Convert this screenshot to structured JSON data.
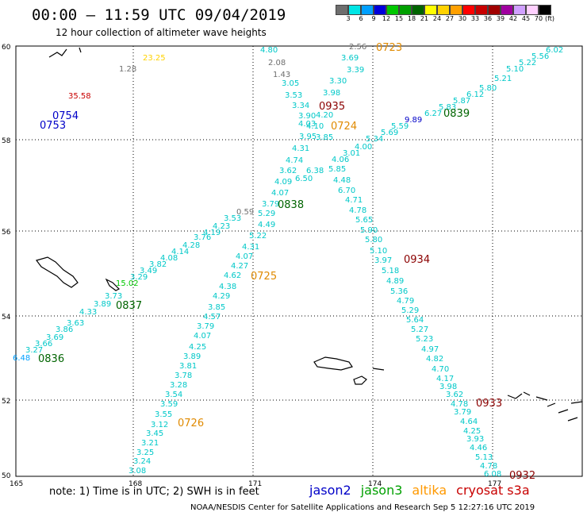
{
  "header": {
    "title": "00:00 – 11:59 UTC 09/04/2019",
    "subtitle": "12 hour collection of altimeter wave heights"
  },
  "legend": {
    "unit": "(ft)",
    "colors": [
      "#6e6e6e",
      "#00e5e5",
      "#00a0ff",
      "#0000dc",
      "#00c800",
      "#00a000",
      "#006400",
      "#ffff00",
      "#ffd200",
      "#ffa000",
      "#ff0000",
      "#c80000",
      "#a00000",
      "#a000a0",
      "#d0a0ff",
      "#ffd0ff",
      "#000000"
    ],
    "ticks": [
      "3",
      "6",
      "9",
      "12",
      "15",
      "18",
      "21",
      "24",
      "27",
      "30",
      "33",
      "36",
      "39",
      "42",
      "45",
      "70"
    ]
  },
  "map": {
    "x_ticks": [
      "165",
      "168",
      "171",
      "174",
      "177"
    ],
    "y_ticks": [
      "60",
      "58",
      "56",
      "54",
      "52",
      "50"
    ]
  },
  "time_labels": [
    {
      "text": "0723",
      "color": "#e08a00"
    },
    {
      "text": "0935",
      "color": "#8b0000"
    },
    {
      "text": "0724",
      "color": "#e08a00"
    },
    {
      "text": "0839",
      "color": "#006400"
    },
    {
      "text": "0754",
      "color": "#0000c8"
    },
    {
      "text": "0753",
      "color": "#0000c8"
    },
    {
      "text": "0838",
      "color": "#006400"
    },
    {
      "text": "0725",
      "color": "#e08a00"
    },
    {
      "text": "0934",
      "color": "#8b0000"
    },
    {
      "text": "0837",
      "color": "#006400"
    },
    {
      "text": "0836",
      "color": "#006400"
    },
    {
      "text": "0726",
      "color": "#e08a00"
    },
    {
      "text": "0933",
      "color": "#8b0000"
    },
    {
      "text": "0932",
      "color": "#8b0000"
    }
  ],
  "obs": [
    {
      "v": "2.56",
      "c": "#6e6e6e"
    },
    {
      "v": "4.80",
      "c": "#00c8c8"
    },
    {
      "v": "2.08",
      "c": "#6e6e6e"
    },
    {
      "v": "1.43",
      "c": "#6e6e6e"
    },
    {
      "v": "3.69",
      "c": "#00c8c8"
    },
    {
      "v": "3.39",
      "c": "#00c8c8"
    },
    {
      "v": "3.30",
      "c": "#00c8c8"
    },
    {
      "v": "3.05",
      "c": "#00c8c8"
    },
    {
      "v": "3.53",
      "c": "#00c8c8"
    },
    {
      "v": "3.98",
      "c": "#00c8c8"
    },
    {
      "v": "3.34",
      "c": "#00c8c8"
    },
    {
      "v": "3.90",
      "c": "#00c8c8"
    },
    {
      "v": "4.20",
      "c": "#00c8c8"
    },
    {
      "v": "4.10",
      "c": "#00c8c8"
    },
    {
      "v": "3.95",
      "c": "#00c8c8"
    },
    {
      "v": "4.03",
      "c": "#00c8c8"
    },
    {
      "v": "3.85",
      "c": "#00c8c8"
    },
    {
      "v": "4.31",
      "c": "#00c8c8"
    },
    {
      "v": "4.74",
      "c": "#00c8c8"
    },
    {
      "v": "3.62",
      "c": "#00c8c8"
    },
    {
      "v": "4.09",
      "c": "#00c8c8"
    },
    {
      "v": "4.07",
      "c": "#00c8c8"
    },
    {
      "v": "3.79",
      "c": "#00c8c8"
    },
    {
      "v": "5.29",
      "c": "#00c8c8"
    },
    {
      "v": "4.49",
      "c": "#00c8c8"
    },
    {
      "v": "5.22",
      "c": "#00c8c8"
    },
    {
      "v": "4.31",
      "c": "#00c8c8"
    },
    {
      "v": "4.07",
      "c": "#00c8c8"
    },
    {
      "v": "4.27",
      "c": "#00c8c8"
    },
    {
      "v": "4.62",
      "c": "#00c8c8"
    },
    {
      "v": "4.38",
      "c": "#00c8c8"
    },
    {
      "v": "4.29",
      "c": "#00c8c8"
    },
    {
      "v": "3.85",
      "c": "#00c8c8"
    },
    {
      "v": "4.57",
      "c": "#00c8c8"
    },
    {
      "v": "3.79",
      "c": "#00c8c8"
    },
    {
      "v": "4.07",
      "c": "#00c8c8"
    },
    {
      "v": "4.25",
      "c": "#00c8c8"
    },
    {
      "v": "3.89",
      "c": "#00c8c8"
    },
    {
      "v": "3.81",
      "c": "#00c8c8"
    },
    {
      "v": "3.78",
      "c": "#00c8c8"
    },
    {
      "v": "3.28",
      "c": "#00c8c8"
    },
    {
      "v": "3.54",
      "c": "#00c8c8"
    },
    {
      "v": "3.59",
      "c": "#00c8c8"
    },
    {
      "v": "3.55",
      "c": "#00c8c8"
    },
    {
      "v": "3.12",
      "c": "#00c8c8"
    },
    {
      "v": "3.45",
      "c": "#00c8c8"
    },
    {
      "v": "3.21",
      "c": "#00c8c8"
    },
    {
      "v": "3.25",
      "c": "#00c8c8"
    },
    {
      "v": "3.24",
      "c": "#00c8c8"
    },
    {
      "v": "3.08",
      "c": "#00c8c8"
    },
    {
      "v": "6.02",
      "c": "#00c8c8"
    },
    {
      "v": "5.56",
      "c": "#00c8c8"
    },
    {
      "v": "5.22",
      "c": "#00c8c8"
    },
    {
      "v": "5.10",
      "c": "#00c8c8"
    },
    {
      "v": "5.21",
      "c": "#00c8c8"
    },
    {
      "v": "5.80",
      "c": "#00c8c8"
    },
    {
      "v": "6.12",
      "c": "#00c8c8"
    },
    {
      "v": "5.87",
      "c": "#00c8c8"
    },
    {
      "v": "5.83",
      "c": "#00c8c8"
    },
    {
      "v": "6.27",
      "c": "#00c8c8"
    },
    {
      "v": "9.89",
      "c": "#0000c8"
    },
    {
      "v": "5.59",
      "c": "#00c8c8"
    },
    {
      "v": "5.69",
      "c": "#00c8c8"
    },
    {
      "v": "5.34",
      "c": "#00c8c8"
    },
    {
      "v": "4.00",
      "c": "#00c8c8"
    },
    {
      "v": "3.01",
      "c": "#00c8c8"
    },
    {
      "v": "4.06",
      "c": "#00c8c8"
    },
    {
      "v": "5.85",
      "c": "#00c8c8"
    },
    {
      "v": "6.50",
      "c": "#00c8c8"
    },
    {
      "v": "6.38",
      "c": "#00c8c8"
    },
    {
      "v": "4.48",
      "c": "#00c8c8"
    },
    {
      "v": "6.70",
      "c": "#00c8c8"
    },
    {
      "v": "4.71",
      "c": "#00c8c8"
    },
    {
      "v": "4.78",
      "c": "#00c8c8"
    },
    {
      "v": "5.65",
      "c": "#00c8c8"
    },
    {
      "v": "5.90",
      "c": "#00c8c8"
    },
    {
      "v": "5.80",
      "c": "#00c8c8"
    },
    {
      "v": "5.10",
      "c": "#00c8c8"
    },
    {
      "v": "3.97",
      "c": "#00c8c8"
    },
    {
      "v": "5.18",
      "c": "#00c8c8"
    },
    {
      "v": "4.89",
      "c": "#00c8c8"
    },
    {
      "v": "5.36",
      "c": "#00c8c8"
    },
    {
      "v": "4.79",
      "c": "#00c8c8"
    },
    {
      "v": "5.29",
      "c": "#00c8c8"
    },
    {
      "v": "5.64",
      "c": "#00c8c8"
    },
    {
      "v": "5.27",
      "c": "#00c8c8"
    },
    {
      "v": "5.23",
      "c": "#00c8c8"
    },
    {
      "v": "4.97",
      "c": "#00c8c8"
    },
    {
      "v": "4.82",
      "c": "#00c8c8"
    },
    {
      "v": "4.70",
      "c": "#00c8c8"
    },
    {
      "v": "4.17",
      "c": "#00c8c8"
    },
    {
      "v": "3.98",
      "c": "#00c8c8"
    },
    {
      "v": "3.62",
      "c": "#00c8c8"
    },
    {
      "v": "4.78",
      "c": "#00c8c8"
    },
    {
      "v": "3.79",
      "c": "#00c8c8"
    },
    {
      "v": "4.64",
      "c": "#00c8c8"
    },
    {
      "v": "4.25",
      "c": "#00c8c8"
    },
    {
      "v": "3.93",
      "c": "#00c8c8"
    },
    {
      "v": "4.46",
      "c": "#00c8c8"
    },
    {
      "v": "5.13",
      "c": "#00c8c8"
    },
    {
      "v": "4.78",
      "c": "#00c8c8"
    },
    {
      "v": "6.08",
      "c": "#00c8c8"
    },
    {
      "v": "0.59",
      "c": "#6e6e6e"
    },
    {
      "v": "3.53",
      "c": "#00c8c8"
    },
    {
      "v": "4.23",
      "c": "#00c8c8"
    },
    {
      "v": "4.19",
      "c": "#00c8c8"
    },
    {
      "v": "3.76",
      "c": "#00c8c8"
    },
    {
      "v": "4.28",
      "c": "#00c8c8"
    },
    {
      "v": "4.14",
      "c": "#00c8c8"
    },
    {
      "v": "4.08",
      "c": "#00c8c8"
    },
    {
      "v": "3.82",
      "c": "#00c8c8"
    },
    {
      "v": "3.49",
      "c": "#00c8c8"
    },
    {
      "v": "3.29",
      "c": "#00c8c8"
    },
    {
      "v": "15.02",
      "c": "#00c800"
    },
    {
      "v": "3.73",
      "c": "#00c8c8"
    },
    {
      "v": "3.89",
      "c": "#00c8c8"
    },
    {
      "v": "4.33",
      "c": "#00c8c8"
    },
    {
      "v": "3.63",
      "c": "#00c8c8"
    },
    {
      "v": "3.86",
      "c": "#00c8c8"
    },
    {
      "v": "3.69",
      "c": "#00c8c8"
    },
    {
      "v": "3.66",
      "c": "#00c8c8"
    },
    {
      "v": "3.27",
      "c": "#00c8c8"
    },
    {
      "v": "6.48",
      "c": "#00a0ff"
    },
    {
      "v": "35.58",
      "c": "#c80000"
    },
    {
      "v": "23.25",
      "c": "#ffd200"
    },
    {
      "v": "1.28",
      "c": "#6e6e6e"
    }
  ],
  "footer": {
    "note": "note:  1) Time is in UTC;  2) SWH is in feet",
    "satellites": [
      {
        "name": "jason2",
        "color": "#0000c8"
      },
      {
        "name": "jason3",
        "color": "#00a000"
      },
      {
        "name": "altika",
        "color": "#ff9900"
      },
      {
        "name": "cryosat s3a",
        "color": "#c80000"
      }
    ],
    "credit": "NOAA/NESDIS Center for Satellite Applications and Research    Sep  5 12:27:16 UTC 2019"
  }
}
